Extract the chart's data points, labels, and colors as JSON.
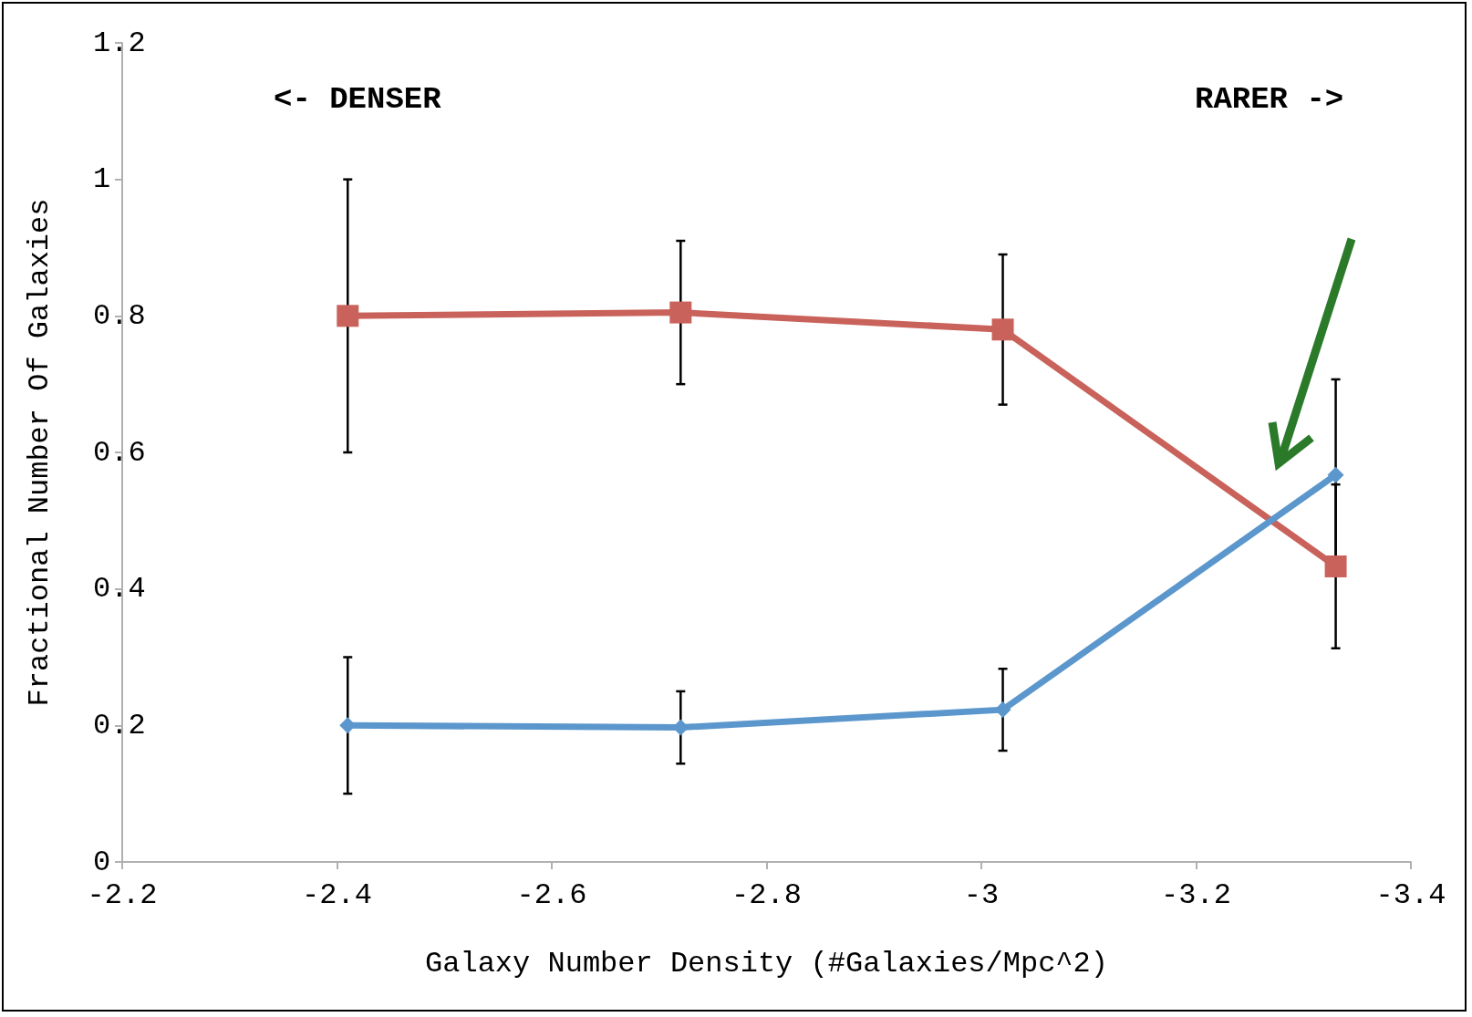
{
  "chart_data": {
    "type": "line",
    "xlabel": "Galaxy Number Density (#Galaxies/Mpc^2)",
    "ylabel": "Fractional Number Of Galaxies",
    "x": [
      -2.41,
      -2.72,
      -3.02,
      -3.33
    ],
    "xlim": [
      -2.2,
      -3.4
    ],
    "xticks": [
      -2.2,
      -2.4,
      -2.6,
      -2.8,
      -3,
      -3.2,
      -3.4
    ],
    "ylim": [
      0,
      1.2
    ],
    "yticks": [
      0,
      0.2,
      0.4,
      0.6,
      0.8,
      1,
      1.2
    ],
    "line_style": "solid",
    "series": [
      {
        "color": "#c9625a",
        "marker": "square",
        "values": [
          0.8,
          0.805,
          0.78,
          0.433
        ],
        "errors": [
          0.2,
          0.105,
          0.11,
          0.12
        ]
      },
      {
        "color": "#5b97cc",
        "marker": "diamond",
        "values": [
          0.2,
          0.197,
          0.223,
          0.567
        ],
        "errors": [
          0.1,
          0.053,
          0.06,
          0.14
        ]
      }
    ],
    "annotations": [
      "<- DENSER",
      "RARER ->"
    ]
  }
}
